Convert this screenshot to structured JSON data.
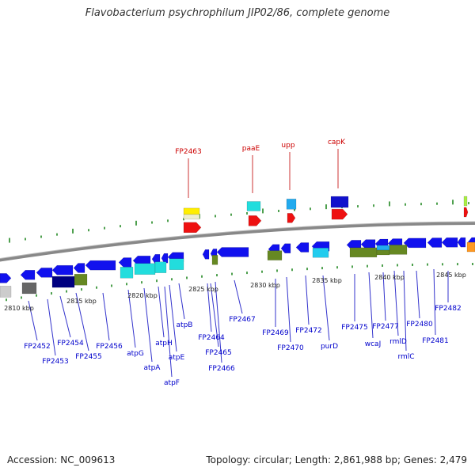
{
  "title": "Flavobacterium psychrophilum JIP02/86, complete genome",
  "footer": {
    "accession": "Accession: NC_009613",
    "topology": "Topology: circular; Length: 2,861,988 bp; Genes: 2,479"
  },
  "colors": {
    "backbone": "#888888",
    "tick": "#228822",
    "label_inner": "#0000cc",
    "label_outer": "#cc0000",
    "leader_inner": "#3333cc",
    "leader_outer": "#cc3333"
  },
  "position_labels": [
    "2810 kbp",
    "2815 kbp",
    "2820 kbp",
    "2825 kbp",
    "2830 kbp",
    "2835 kbp",
    "2840 kbp",
    "2845 kbp"
  ],
  "outer_labels": [
    "FP2463",
    "paaE",
    "upp",
    "capK"
  ],
  "inner_labels": [
    "FP2452",
    "FP2453",
    "FP2454",
    "FP2455",
    "FP2456",
    "atpG",
    "atpA",
    "atpH",
    "atpF",
    "atpE",
    "atpB",
    "FP2464",
    "FP2465",
    "FP2466",
    "FP2467",
    "FP2469",
    "FP2470",
    "FP2472",
    "purD",
    "FP2475",
    "wcaJ",
    "FP2477",
    "rmlD",
    "rmlC",
    "FP2480",
    "FP2481",
    "FP2482"
  ]
}
